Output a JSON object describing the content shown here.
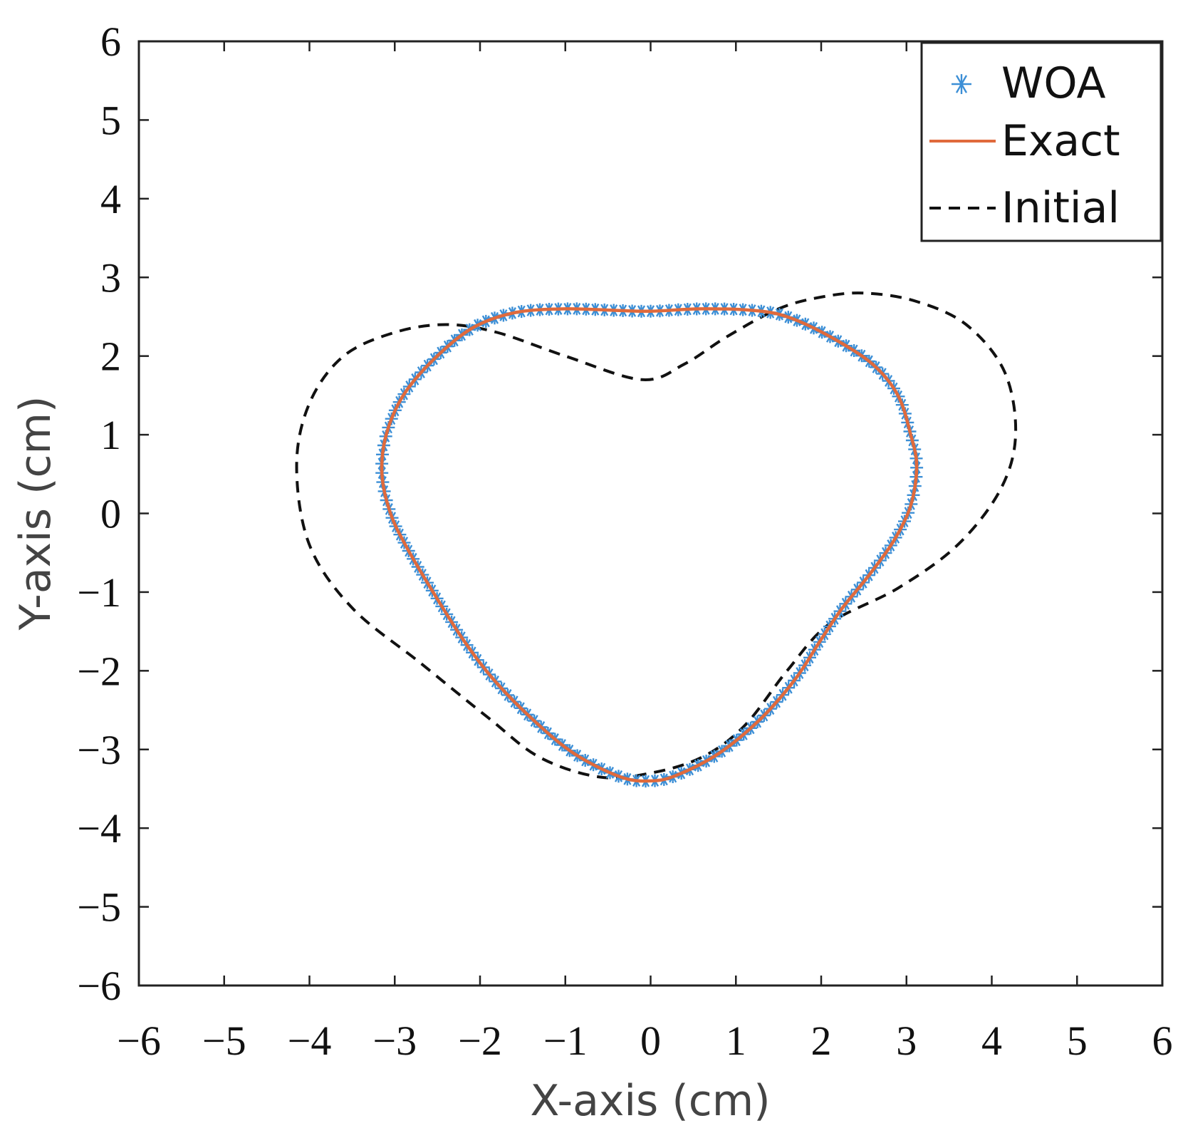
{
  "chart_data": {
    "type": "line",
    "title": "",
    "xlabel": "X-axis (cm)",
    "ylabel": "Y-axis (cm)",
    "xlim": [
      -6,
      6
    ],
    "ylim": [
      -6,
      6
    ],
    "grid": false,
    "legend_position": "top-right",
    "x_ticks": [
      -6,
      -5,
      -4,
      -3,
      -2,
      -1,
      0,
      1,
      2,
      3,
      4,
      5,
      6
    ],
    "y_ticks": [
      -6,
      -5,
      -4,
      -3,
      -2,
      -1,
      0,
      1,
      2,
      3,
      4,
      5,
      6
    ],
    "x_tick_labels": [
      "−6",
      "−5",
      "−4",
      "−3",
      "−2",
      "−1",
      "0",
      "1",
      "2",
      "3",
      "4",
      "5",
      "6"
    ],
    "y_tick_labels": [
      "−6",
      "−5",
      "−4",
      "−3",
      "−2",
      "−1",
      "0",
      "1",
      "2",
      "3",
      "4",
      "5",
      "6"
    ],
    "series": [
      {
        "name": "WOA",
        "style": "markers",
        "marker": "*",
        "color": "#3c8fd6",
        "closed": true,
        "x": [
          0.0,
          0.6,
          1.2,
          1.6,
          2.1,
          2.6,
          2.9,
          3.05,
          3.12,
          3.05,
          2.85,
          2.55,
          2.25,
          2.0,
          1.7,
          1.3,
          0.8,
          0.3,
          0.0,
          -0.35,
          -0.9,
          -1.4,
          -1.85,
          -2.2,
          -2.55,
          -2.85,
          -3.05,
          -3.15,
          -3.1,
          -2.9,
          -2.55,
          -2.1,
          -1.6,
          -1.0,
          -0.4
        ],
        "y": [
          2.57,
          2.6,
          2.58,
          2.5,
          2.25,
          1.9,
          1.5,
          1.0,
          0.6,
          0.1,
          -0.35,
          -0.8,
          -1.2,
          -1.6,
          -2.1,
          -2.6,
          -3.05,
          -3.33,
          -3.4,
          -3.35,
          -3.05,
          -2.6,
          -2.1,
          -1.6,
          -1.0,
          -0.45,
          0.0,
          0.5,
          1.0,
          1.5,
          1.95,
          2.35,
          2.55,
          2.6,
          2.58
        ]
      },
      {
        "name": "Exact",
        "style": "solid",
        "color": "#e06a3c",
        "closed": true,
        "x": [
          0.0,
          0.6,
          1.2,
          1.6,
          2.1,
          2.6,
          2.9,
          3.05,
          3.12,
          3.05,
          2.85,
          2.55,
          2.25,
          2.0,
          1.7,
          1.3,
          0.8,
          0.3,
          0.0,
          -0.35,
          -0.9,
          -1.4,
          -1.85,
          -2.2,
          -2.55,
          -2.85,
          -3.05,
          -3.15,
          -3.1,
          -2.9,
          -2.55,
          -2.1,
          -1.6,
          -1.0,
          -0.4
        ],
        "y": [
          2.57,
          2.6,
          2.58,
          2.5,
          2.25,
          1.9,
          1.5,
          1.0,
          0.6,
          0.1,
          -0.35,
          -0.8,
          -1.2,
          -1.6,
          -2.1,
          -2.6,
          -3.05,
          -3.33,
          -3.4,
          -3.35,
          -3.05,
          -2.6,
          -2.1,
          -1.6,
          -1.0,
          -0.45,
          0.0,
          0.5,
          1.0,
          1.5,
          1.95,
          2.35,
          2.55,
          2.6,
          2.58
        ]
      },
      {
        "name": "Initial",
        "style": "dashed",
        "color": "#111111",
        "closed": true,
        "x": [
          -0.1,
          0.4,
          0.9,
          1.5,
          2.0,
          2.5,
          3.1,
          3.7,
          4.15,
          4.28,
          4.1,
          3.6,
          2.9,
          2.1,
          1.6,
          1.1,
          0.6,
          0.0,
          -0.6,
          -1.3,
          -1.9,
          -2.7,
          -3.5,
          -4.0,
          -4.15,
          -4.0,
          -3.6,
          -3.0,
          -2.4,
          -1.8,
          -1.0
        ],
        "y": [
          1.7,
          1.9,
          2.25,
          2.6,
          2.75,
          2.8,
          2.7,
          2.4,
          1.8,
          1.0,
          0.3,
          -0.4,
          -0.95,
          -1.4,
          -2.0,
          -2.7,
          -3.1,
          -3.3,
          -3.35,
          -3.1,
          -2.6,
          -1.9,
          -1.2,
          -0.4,
          0.6,
          1.4,
          2.0,
          2.3,
          2.4,
          2.3,
          2.0
        ]
      }
    ]
  }
}
